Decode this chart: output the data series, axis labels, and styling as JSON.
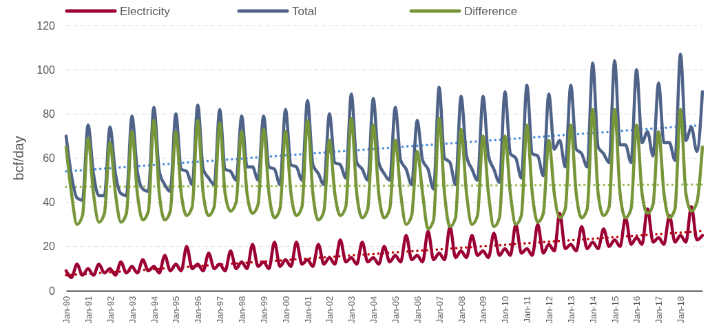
{
  "chart_data": {
    "type": "line",
    "ylabel": "bcf/day",
    "ylim": [
      0,
      120
    ],
    "yticks": [
      0,
      20,
      40,
      60,
      80,
      100,
      120
    ],
    "grid": "y",
    "legend": "top",
    "line_style": "solid",
    "marker": "none",
    "xlim": [
      "1990-01",
      "2019-01"
    ],
    "xticks": [
      {
        "value": "1990-01",
        "label": "Jan-90"
      },
      {
        "value": "1991-01",
        "label": "Jan-91"
      },
      {
        "value": "1992-01",
        "label": "Jan-92"
      },
      {
        "value": "1993-01",
        "label": "Jan-93"
      },
      {
        "value": "1994-01",
        "label": "Jan-94"
      },
      {
        "value": "1995-01",
        "label": "Jan-95"
      },
      {
        "value": "1996-01",
        "label": "Jan-96"
      },
      {
        "value": "1997-01",
        "label": "Jan-97"
      },
      {
        "value": "1998-01",
        "label": "Jan-98"
      },
      {
        "value": "1999-01",
        "label": "Jan-99"
      },
      {
        "value": "2000-01",
        "label": "Jan-00"
      },
      {
        "value": "2001-01",
        "label": "Jan-01"
      },
      {
        "value": "2002-01",
        "label": "Jan-02"
      },
      {
        "value": "2003-01",
        "label": "Jan-03"
      },
      {
        "value": "2004-01",
        "label": "Jan-04"
      },
      {
        "value": "2005-01",
        "label": "Jan-05"
      },
      {
        "value": "2006-01",
        "label": "Jan-06"
      },
      {
        "value": "2007-01",
        "label": "Jan-07"
      },
      {
        "value": "2008-01",
        "label": "Jan-08"
      },
      {
        "value": "2009-01",
        "label": "Jan-09"
      },
      {
        "value": "2010-01",
        "label": "Jan-10"
      },
      {
        "value": "2011-01",
        "label": "Jan-11"
      },
      {
        "value": "2012-01",
        "label": "Jan-12"
      },
      {
        "value": "2013-01",
        "label": "Jan-13"
      },
      {
        "value": "2014-01",
        "label": "Jan-14"
      },
      {
        "value": "2015-01",
        "label": "Jan-15"
      },
      {
        "value": "2016-01",
        "label": "Jan-16"
      },
      {
        "value": "2017-01",
        "label": "Jan-17"
      },
      {
        "value": "2018-01",
        "label": "Jan-18"
      }
    ],
    "x": [
      "1990-01",
      "1990-04",
      "1990-07",
      "1990-10",
      "1991-01",
      "1991-04",
      "1991-07",
      "1991-10",
      "1992-01",
      "1992-04",
      "1992-07",
      "1992-10",
      "1993-01",
      "1993-04",
      "1993-07",
      "1993-10",
      "1994-01",
      "1994-04",
      "1994-07",
      "1994-10",
      "1995-01",
      "1995-04",
      "1995-07",
      "1995-10",
      "1996-01",
      "1996-04",
      "1996-07",
      "1996-10",
      "1997-01",
      "1997-04",
      "1997-07",
      "1997-10",
      "1998-01",
      "1998-04",
      "1998-07",
      "1998-10",
      "1999-01",
      "1999-04",
      "1999-07",
      "1999-10",
      "2000-01",
      "2000-04",
      "2000-07",
      "2000-10",
      "2001-01",
      "2001-04",
      "2001-07",
      "2001-10",
      "2002-01",
      "2002-04",
      "2002-07",
      "2002-10",
      "2003-01",
      "2003-04",
      "2003-07",
      "2003-10",
      "2004-01",
      "2004-04",
      "2004-07",
      "2004-10",
      "2005-01",
      "2005-04",
      "2005-07",
      "2005-10",
      "2006-01",
      "2006-04",
      "2006-07",
      "2006-10",
      "2007-01",
      "2007-04",
      "2007-07",
      "2007-10",
      "2008-01",
      "2008-04",
      "2008-07",
      "2008-10",
      "2009-01",
      "2009-04",
      "2009-07",
      "2009-10",
      "2010-01",
      "2010-04",
      "2010-07",
      "2010-10",
      "2011-01",
      "2011-04",
      "2011-07",
      "2011-10",
      "2012-01",
      "2012-04",
      "2012-07",
      "2012-10",
      "2013-01",
      "2013-04",
      "2013-07",
      "2013-10",
      "2014-01",
      "2014-04",
      "2014-07",
      "2014-10",
      "2015-01",
      "2015-04",
      "2015-07",
      "2015-10",
      "2016-01",
      "2016-04",
      "2016-07",
      "2016-10",
      "2017-01",
      "2017-04",
      "2017-07",
      "2017-10",
      "2018-01",
      "2018-04",
      "2018-07",
      "2018-10",
      "2019-01"
    ],
    "series": [
      {
        "name": "Electricity",
        "color": "#9b0035",
        "values": [
          9,
          6,
          12,
          7,
          10,
          7,
          12,
          8,
          10,
          7,
          13,
          8,
          11,
          8,
          14,
          9,
          11,
          8,
          16,
          9,
          12,
          9,
          20,
          10,
          12,
          9,
          17,
          10,
          12,
          9,
          18,
          10,
          13,
          10,
          21,
          11,
          13,
          10,
          22,
          11,
          14,
          11,
          22,
          12,
          14,
          11,
          21,
          12,
          15,
          12,
          23,
          13,
          15,
          12,
          22,
          13,
          15,
          12,
          20,
          13,
          16,
          13,
          25,
          14,
          16,
          13,
          27,
          14,
          17,
          14,
          29,
          15,
          18,
          15,
          25,
          16,
          18,
          15,
          26,
          16,
          19,
          16,
          30,
          17,
          19,
          16,
          30,
          17,
          21,
          18,
          35,
          19,
          21,
          18,
          29,
          19,
          22,
          19,
          28,
          20,
          23,
          20,
          33,
          21,
          24,
          21,
          37,
          22,
          24,
          21,
          34,
          22,
          25,
          22,
          38,
          23,
          25
        ]
      },
      {
        "name": "Total",
        "color": "#4f6389",
        "values": [
          70,
          52,
          42,
          41,
          75,
          53,
          43,
          43,
          74,
          53,
          44,
          43,
          79,
          54,
          46,
          45,
          83,
          54,
          48,
          45,
          80,
          55,
          54,
          48,
          84,
          55,
          51,
          48,
          82,
          55,
          54,
          50,
          79,
          56,
          56,
          50,
          79,
          56,
          55,
          48,
          82,
          57,
          56,
          50,
          86,
          57,
          53,
          48,
          80,
          58,
          57,
          51,
          89,
          58,
          55,
          50,
          87,
          58,
          53,
          50,
          83,
          59,
          55,
          48,
          77,
          59,
          55,
          46,
          92,
          60,
          58,
          48,
          88,
          61,
          55,
          50,
          88,
          61,
          55,
          49,
          90,
          62,
          60,
          51,
          93,
          62,
          61,
          52,
          89,
          64,
          68,
          56,
          93,
          64,
          62,
          56,
          103,
          65,
          62,
          58,
          104,
          66,
          66,
          58,
          100,
          67,
          72,
          61,
          94,
          67,
          67,
          59,
          107,
          68,
          74,
          63,
          90
        ]
      },
      {
        "name": "Difference",
        "color": "#77963a",
        "values": [
          65,
          44,
          30,
          34,
          69,
          44,
          31,
          35,
          67,
          44,
          31,
          35,
          72,
          44,
          32,
          36,
          77,
          44,
          32,
          36,
          72,
          44,
          34,
          38,
          77,
          44,
          34,
          38,
          76,
          44,
          36,
          40,
          72,
          44,
          35,
          39,
          73,
          44,
          33,
          37,
          72,
          44,
          34,
          38,
          77,
          44,
          32,
          36,
          68,
          44,
          34,
          38,
          78,
          44,
          33,
          37,
          75,
          44,
          33,
          37,
          68,
          44,
          30,
          34,
          63,
          44,
          28,
          32,
          78,
          44,
          29,
          33,
          73,
          44,
          30,
          34,
          70,
          44,
          29,
          33,
          70,
          44,
          30,
          34,
          75,
          44,
          31,
          35,
          68,
          44,
          33,
          37,
          75,
          44,
          33,
          37,
          82,
          44,
          34,
          38,
          82,
          44,
          33,
          37,
          75,
          44,
          35,
          39,
          72,
          44,
          33,
          37,
          82,
          44,
          36,
          40,
          65
        ]
      },
      {
        "type": "line",
        "color": "#c00000",
        "line_style": "dotted",
        "x": [
          "1990-01",
          "2019-01"
        ],
        "values": [
          7,
          27
        ]
      },
      {
        "type": "line",
        "color": "#4a8fe0",
        "line_style": "dotted",
        "x": [
          "1990-01",
          "2019-01"
        ],
        "values": [
          54,
          75
        ]
      },
      {
        "type": "line",
        "color": "#9bc159",
        "line_style": "dotted",
        "x": [
          "1990-01",
          "2019-01"
        ],
        "values": [
          47,
          48
        ]
      }
    ]
  }
}
